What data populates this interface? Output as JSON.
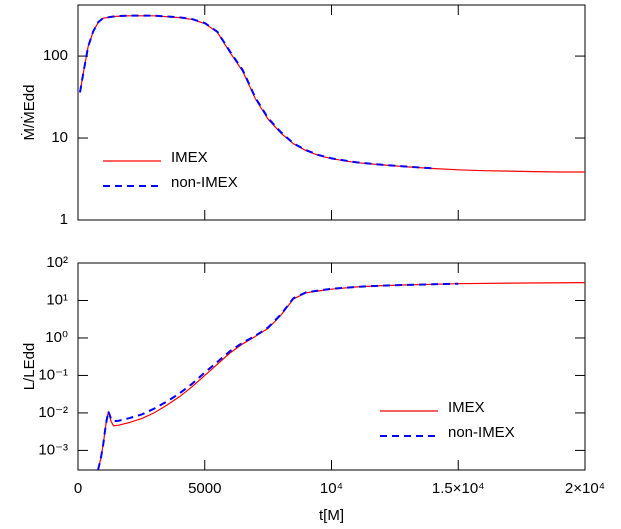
{
  "chart_data": [
    {
      "type": "line",
      "ylabel": "Ṁ/ṀEdd",
      "x": [
        80,
        200,
        400,
        600,
        800,
        1000,
        1500,
        2000,
        3000,
        4000,
        4500,
        5000,
        5500,
        6000,
        6500,
        7000,
        7500,
        8000,
        8500,
        9000,
        9500,
        10000,
        11000,
        12000,
        13000,
        14000,
        15000,
        16000,
        17000,
        18000,
        19000,
        20000
      ],
      "series": [
        {
          "name": "IMEX",
          "color": "#ff0000",
          "dash": false,
          "values": [
            36,
            60,
            130,
            200,
            260,
            290,
            305,
            310,
            310,
            295,
            280,
            250,
            195,
            110,
            65,
            30,
            17,
            11.5,
            8.5,
            7,
            6.1,
            5.6,
            5.0,
            4.7,
            4.45,
            4.25,
            4.1,
            4.0,
            3.95,
            3.9,
            3.85,
            3.85
          ]
        },
        {
          "name": "non-IMEX",
          "color": "#0000ff",
          "dash": true,
          "values": [
            36,
            60,
            130,
            200,
            260,
            292,
            307,
            312,
            311,
            297,
            283,
            253,
            198,
            113,
            67,
            31,
            17.5,
            11.8,
            8.6,
            7.1,
            6.2,
            5.65,
            5.05,
            4.72,
            4.47,
            4.27,
            null,
            null,
            null,
            null,
            null,
            null
          ]
        }
      ],
      "xlim": [
        0,
        20000
      ],
      "xticks": [
        0,
        5000,
        10000,
        15000,
        20000
      ],
      "xtick_labels": false,
      "ylim": [
        1,
        420
      ],
      "yticks": [
        1,
        10,
        100
      ],
      "ylog": true,
      "legend": "lower left"
    },
    {
      "type": "line",
      "xlabel": "t[M]",
      "ylabel": "L/LEdd",
      "x": [
        790,
        900,
        1000,
        1100,
        1200,
        1300,
        1400,
        1600,
        2000,
        2500,
        3000,
        3500,
        4000,
        4500,
        5000,
        5500,
        6000,
        6500,
        7000,
        7500,
        8000,
        8500,
        9000,
        9500,
        10000,
        11000,
        12000,
        13000,
        14000,
        15000,
        17000,
        20000
      ],
      "series": [
        {
          "name": "IMEX",
          "color": "#ff0000",
          "dash": false,
          "values": [
            0.0003,
            0.0006,
            0.0015,
            0.005,
            0.011,
            0.006,
            0.0045,
            0.0047,
            0.0055,
            0.007,
            0.01,
            0.016,
            0.027,
            0.05,
            0.1,
            0.2,
            0.4,
            0.7,
            1.1,
            1.8,
            4,
            11,
            16,
            18,
            20,
            23,
            25,
            26,
            27,
            28,
            29,
            30
          ]
        },
        {
          "name": "non-IMEX",
          "color": "#0000ff",
          "dash": true,
          "values": [
            0.0003,
            0.0006,
            0.0015,
            0.005,
            0.011,
            0.007,
            0.006,
            0.0062,
            0.0072,
            0.009,
            0.013,
            0.02,
            0.033,
            0.06,
            0.12,
            0.23,
            0.45,
            0.75,
            1.15,
            1.9,
            4.2,
            11.5,
            16.5,
            18.5,
            20.5,
            23,
            25,
            26,
            27,
            28,
            null,
            null
          ]
        }
      ],
      "xlim": [
        0,
        20000
      ],
      "xticks": [
        0,
        5000,
        {
          "value": 10000,
          "label": "10⁴"
        },
        {
          "value": 15000,
          "label": "1.5×10⁴"
        },
        {
          "value": 20000,
          "label": "2×10⁴"
        }
      ],
      "ylim": [
        0.0003,
        100
      ],
      "yticks": [
        {
          "value": 100,
          "label": "10²"
        },
        {
          "value": 10,
          "label": "10¹"
        },
        {
          "value": 1,
          "label": "10⁰"
        },
        {
          "value": 0.1,
          "label": "10⁻¹"
        },
        {
          "value": 0.01,
          "label": "10⁻²"
        },
        {
          "value": 0.001,
          "label": "10⁻³"
        }
      ],
      "ylog": true,
      "legend": "lower right"
    }
  ]
}
